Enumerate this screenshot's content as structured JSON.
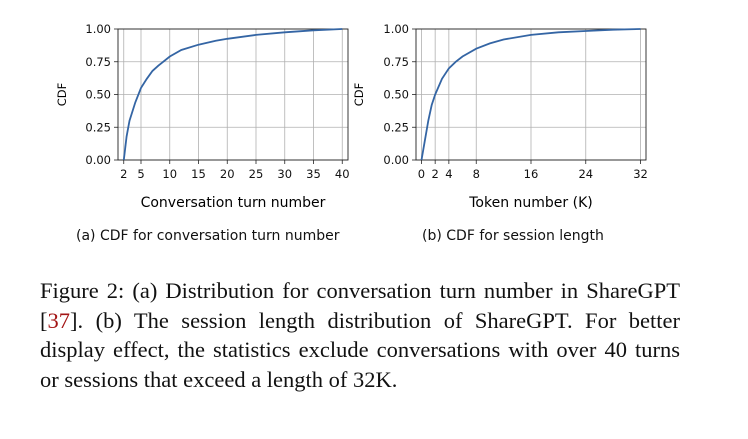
{
  "chart_data": [
    {
      "type": "line",
      "xlabel": "Conversation turn number",
      "ylabel": "CDF",
      "xlim": [
        1,
        41
      ],
      "ylim": [
        0.0,
        1.0
      ],
      "xticks": [
        "2",
        "5",
        "10",
        "15",
        "20",
        "25",
        "30",
        "35",
        "40"
      ],
      "yticks": [
        "0.00",
        "0.25",
        "0.50",
        "0.75",
        "1.00"
      ],
      "grid": true,
      "caption": "(a) CDF for conversation turn number",
      "color": "#3465a4",
      "x": [
        2,
        2.5,
        3,
        4,
        5,
        6,
        7,
        8,
        10,
        12,
        15,
        18,
        20,
        25,
        30,
        35,
        40
      ],
      "y": [
        0.0,
        0.18,
        0.3,
        0.44,
        0.55,
        0.62,
        0.68,
        0.72,
        0.79,
        0.84,
        0.88,
        0.91,
        0.925,
        0.955,
        0.975,
        0.99,
        1.0
      ]
    },
    {
      "type": "line",
      "xlabel": "Token number (K)",
      "ylabel": "CDF",
      "xlim": [
        -0.8,
        32.8
      ],
      "ylim": [
        0.0,
        1.0
      ],
      "xticks": [
        "0",
        "2",
        "4",
        "8",
        "16",
        "24",
        "32"
      ],
      "yticks": [
        "0.00",
        "0.25",
        "0.50",
        "0.75",
        "1.00"
      ],
      "grid": true,
      "caption": "(b) CDF for session length",
      "color": "#3465a4",
      "x": [
        0,
        0.5,
        1,
        1.5,
        2,
        3,
        4,
        5,
        6,
        8,
        10,
        12,
        16,
        20,
        24,
        28,
        32
      ],
      "y": [
        0.0,
        0.15,
        0.3,
        0.42,
        0.5,
        0.62,
        0.7,
        0.75,
        0.79,
        0.85,
        0.89,
        0.92,
        0.955,
        0.975,
        0.985,
        0.995,
        1.0
      ]
    }
  ],
  "figure_caption": {
    "p1": "Figure 2: (a) Distribution for conversation turn number in ShareGPT [",
    "ref": "37",
    "p2": "]. (b) The session length distribution of ShareGPT. For better display effect, the statistics exclude conversations with over 40 turns or sessions that exceed a length of 32K."
  }
}
